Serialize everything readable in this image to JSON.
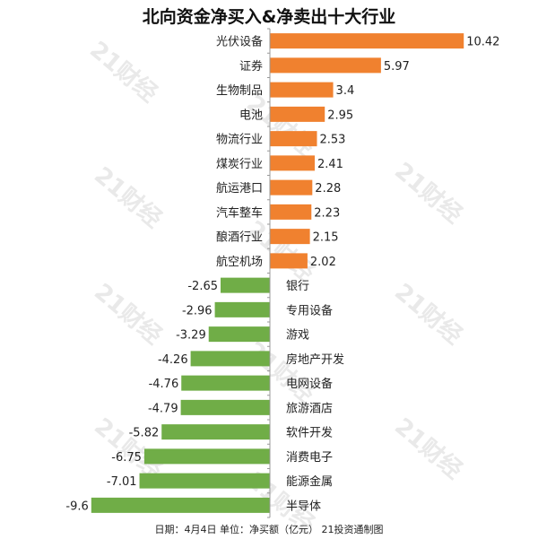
{
  "header": {
    "title": "北向资金净买入&净卖出十大行业"
  },
  "footer": {
    "note": "日期：4月4日  单位：净买额（亿元） 21投资通制图"
  },
  "watermark": {
    "text": "21财经"
  },
  "colors": {
    "positive": "#f0812f",
    "negative": "#70ad47",
    "axis": "#999999"
  },
  "chart_data": {
    "type": "bar",
    "orientation": "horizontal",
    "title": "北向资金净买入&净卖出十大行业",
    "categories": [
      "光伏设备",
      "证券",
      "生物制品",
      "电池",
      "物流行业",
      "煤炭行业",
      "航运港口",
      "汽车整车",
      "酿酒行业",
      "航空机场",
      "银行",
      "专用设备",
      "游戏",
      "房地产开发",
      "电网设备",
      "旅游酒店",
      "软件开发",
      "消费电子",
      "能源金属",
      "半导体"
    ],
    "values": [
      10.42,
      5.97,
      3.4,
      2.95,
      2.53,
      2.41,
      2.28,
      2.23,
      2.15,
      2.02,
      -2.65,
      -2.96,
      -3.29,
      -4.26,
      -4.76,
      -4.79,
      -5.82,
      -6.75,
      -7.01,
      -9.6
    ],
    "value_labels": [
      "10.42",
      "5.97",
      "3.4",
      "2.95",
      "2.53",
      "2.41",
      "2.28",
      "2.23",
      "2.15",
      "2.02",
      "-2.65",
      "-2.96",
      "-3.29",
      "-4.26",
      "-4.76",
      "-4.79",
      "-5.82",
      "-6.75",
      "-7.01",
      "-9.6"
    ],
    "unit": "亿元",
    "xlim": [
      -10.5,
      11.2
    ],
    "grid": false,
    "legend": "none"
  }
}
